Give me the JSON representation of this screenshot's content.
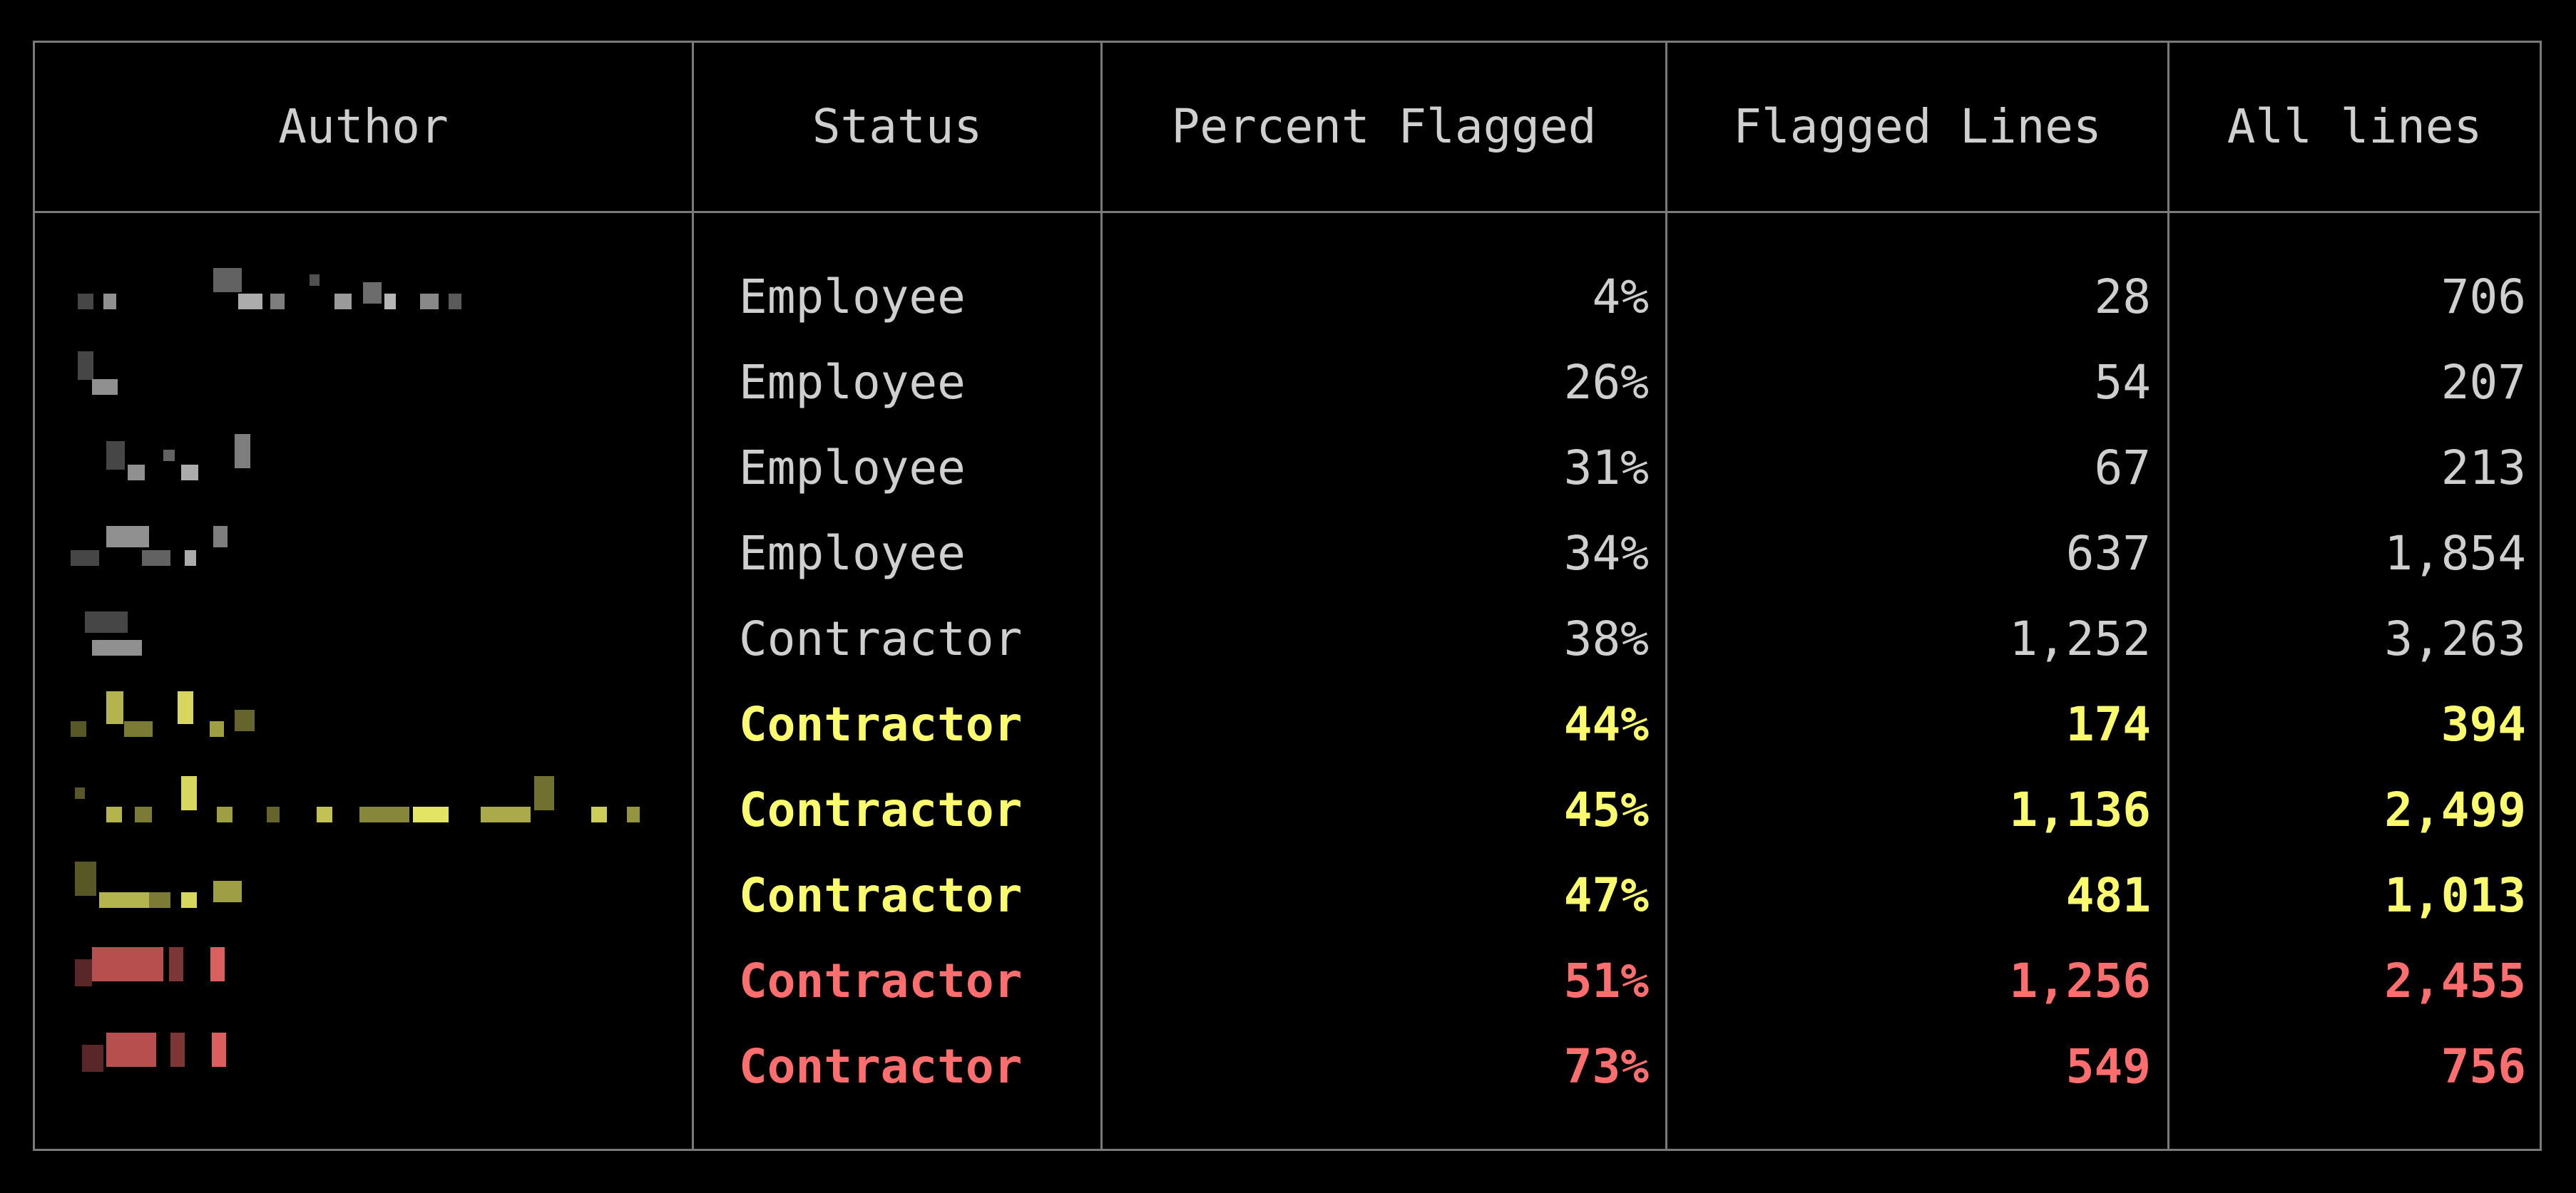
{
  "table": {
    "columns": [
      "Author",
      "Status",
      "Percent Flagged",
      "Flagged Lines",
      "All lines"
    ],
    "rows": [
      {
        "status": "Employee",
        "percent": "4%",
        "flagged": "28",
        "all": "706",
        "level": "normal"
      },
      {
        "status": "Employee",
        "percent": "26%",
        "flagged": "54",
        "all": "207",
        "level": "normal"
      },
      {
        "status": "Employee",
        "percent": "31%",
        "flagged": "67",
        "all": "213",
        "level": "normal"
      },
      {
        "status": "Employee",
        "percent": "34%",
        "flagged": "637",
        "all": "1,854",
        "level": "normal"
      },
      {
        "status": "Contractor",
        "percent": "38%",
        "flagged": "1,252",
        "all": "3,263",
        "level": "normal"
      },
      {
        "status": "Contractor",
        "percent": "44%",
        "flagged": "174",
        "all": "394",
        "level": "warn"
      },
      {
        "status": "Contractor",
        "percent": "45%",
        "flagged": "1,136",
        "all": "2,499",
        "level": "warn"
      },
      {
        "status": "Contractor",
        "percent": "47%",
        "flagged": "481",
        "all": "1,013",
        "level": "warn"
      },
      {
        "status": "Contractor",
        "percent": "51%",
        "flagged": "1,256",
        "all": "2,455",
        "level": "danger"
      },
      {
        "status": "Contractor",
        "percent": "73%",
        "flagged": "549",
        "all": "756",
        "level": "danger"
      }
    ]
  },
  "colors": {
    "background": "#000000",
    "border": "#7a7a7a",
    "normal_text": "#cfcfcf",
    "warning_text": "#fafa6e",
    "danger_text": "#ff6e6e"
  }
}
